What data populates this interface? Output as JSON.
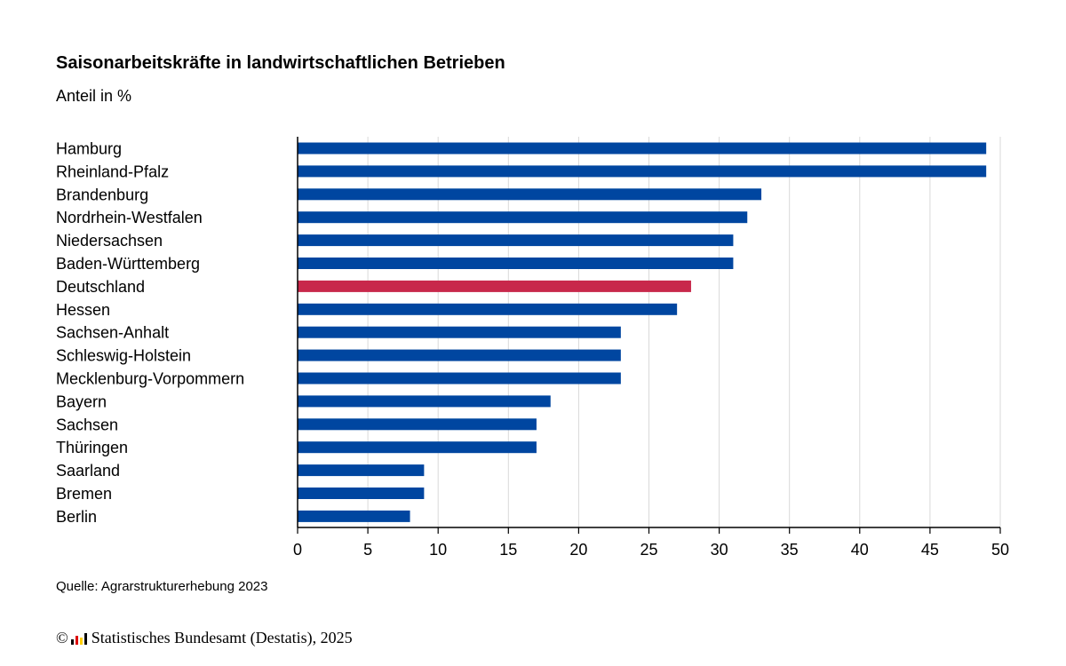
{
  "title": "Saisonarbeitskräfte in landwirtschaftlichen Betrieben",
  "subtitle": "Anteil in %",
  "source": "Quelle: Agrarstrukturerhebung 2023",
  "copyright": {
    "symbol": "©",
    "text": "Statistisches Bundesamt (Destatis), 2025",
    "logo_icon": "destatis-logo-icon"
  },
  "colors": {
    "bar": "#0046a0",
    "highlight": "#c8284b",
    "grid": "#d9d9d9",
    "axis": "#000000"
  },
  "chart_data": {
    "type": "bar",
    "orientation": "horizontal",
    "categories": [
      "Hamburg",
      "Rheinland-Pfalz",
      "Brandenburg",
      "Nordrhein-Westfalen",
      "Niedersachsen",
      "Baden-Württemberg",
      "Deutschland",
      "Hessen",
      "Sachsen-Anhalt",
      "Schleswig-Holstein",
      "Mecklenburg-Vorpommern",
      "Bayern",
      "Sachsen",
      "Thüringen",
      "Saarland",
      "Bremen",
      "Berlin"
    ],
    "values": [
      49,
      49,
      33,
      32,
      31,
      31,
      28,
      27,
      23,
      23,
      23,
      18,
      17,
      17,
      9,
      9,
      8
    ],
    "highlight_category": "Deutschland",
    "xlim": [
      0,
      50
    ],
    "xticks": [
      "0",
      "5",
      "10",
      "15",
      "20",
      "25",
      "30",
      "35",
      "40",
      "45",
      "50"
    ],
    "grid": true,
    "legend": "none"
  }
}
